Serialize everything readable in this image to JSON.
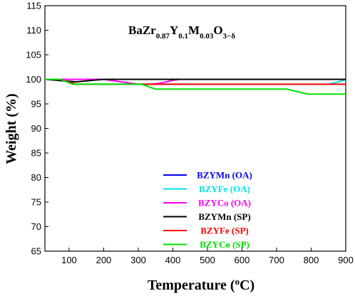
{
  "chart_data": {
    "type": "line",
    "title": "",
    "annotation": {
      "base": "BaZr",
      "sub1": "0.87",
      "mid1": "Y",
      "sub2": "0.1",
      "mid2": "M",
      "sub3": "0.03",
      "mid3": "O",
      "sub4": "3−δ"
    },
    "xlabel": {
      "prefix": "Temperature (",
      "sup": "o",
      "suffix": "C)"
    },
    "ylabel": "Weight (%)",
    "xlim": [
      30,
      900
    ],
    "ylim": [
      65,
      115
    ],
    "xticks": [
      100,
      200,
      300,
      400,
      500,
      600,
      700,
      800,
      900
    ],
    "yticks": [
      65,
      70,
      75,
      80,
      85,
      90,
      95,
      100,
      105,
      110,
      115
    ],
    "legend_position": "center",
    "series": [
      {
        "name": "BZYMn (OA)",
        "color": "#0000ff",
        "x": [
          30,
          900
        ],
        "y": [
          100,
          100
        ]
      },
      {
        "name": "BZYFe (OA)",
        "color": "#00e5e5",
        "x": [
          30,
          75,
          100,
          120,
          200,
          300,
          400,
          500,
          600,
          700,
          800,
          850,
          880,
          900
        ],
        "y": [
          100,
          100,
          99.5,
          99,
          99,
          99,
          99,
          99,
          99,
          99,
          99,
          99,
          99.5,
          100
        ]
      },
      {
        "name": "BZYCo (OA)",
        "color": "#ff00ff",
        "x": [
          30,
          150,
          200,
          250,
          300,
          340,
          370,
          400,
          420,
          900
        ],
        "y": [
          100,
          100,
          100,
          99.5,
          99,
          99,
          99.3,
          99.8,
          100,
          100
        ]
      },
      {
        "name": "BZYMn (SP)",
        "color": "#000000",
        "x": [
          30,
          120,
          200,
          900
        ],
        "y": [
          100,
          99.5,
          100,
          100
        ]
      },
      {
        "name": "BZYFe (SP)",
        "color": "#ff0000",
        "x": [
          30,
          75,
          120,
          200,
          300,
          340,
          400,
          500,
          600,
          700,
          800,
          900
        ],
        "y": [
          100,
          100,
          99,
          99,
          99,
          99,
          99,
          99,
          99,
          99,
          99,
          99
        ]
      },
      {
        "name": "BZYCo (SP)",
        "color": "#00e000",
        "x": [
          30,
          75,
          110,
          200,
          310,
          350,
          500,
          600,
          730,
          790,
          850,
          900
        ],
        "y": [
          100,
          100,
          99,
          99,
          99,
          98,
          98,
          98,
          98,
          97,
          97,
          97
        ]
      }
    ]
  }
}
